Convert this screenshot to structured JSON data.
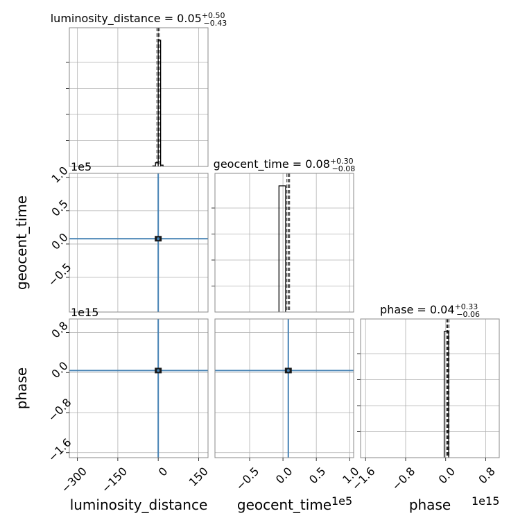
{
  "chart_data": {
    "type": "corner",
    "parameters": [
      "luminosity_distance",
      "geocent_time",
      "phase"
    ],
    "titles": [
      {
        "name": "luminosity_distance",
        "median": "0.05",
        "plus": "+0.50",
        "minus": "−0.43"
      },
      {
        "name": "geocent_time",
        "median": "0.08",
        "plus": "+0.30",
        "minus": "−0.08"
      },
      {
        "name": "phase",
        "median": "0.04",
        "plus": "+0.33",
        "minus": "−0.06"
      }
    ],
    "ranges": [
      [
        -330,
        185
      ],
      [
        -102000,
        106000
      ],
      [
        -1700000000000000.0,
        1070000000000000.0
      ]
    ],
    "ticks": {
      "luminosity_distance": [
        {
          "v": -300,
          "label": "−300"
        },
        {
          "v": -150,
          "label": "−150"
        },
        {
          "v": 0,
          "label": "0"
        },
        {
          "v": 150,
          "label": "150"
        }
      ],
      "geocent_time": [
        {
          "v": -50000,
          "label": "−0.5"
        },
        {
          "v": 0,
          "label": "0.0"
        },
        {
          "v": 50000,
          "label": "0.5"
        },
        {
          "v": 100000,
          "label": "1.0"
        }
      ],
      "phase": [
        {
          "v": -1600000000000000.0,
          "label": "−1.6"
        },
        {
          "v": -800000000000000.0,
          "label": "−0.8"
        },
        {
          "v": 0,
          "label": "0.0"
        },
        {
          "v": 800000000000000.0,
          "label": "0.8"
        }
      ]
    },
    "offset_labels": {
      "geocent_time": "1e5",
      "phase": "1e15"
    },
    "medians": [
      0.05,
      8000,
      40000000000000.0
    ],
    "histograms": [
      {
        "bins": [
          [
            -20,
            -10,
            0.004
          ],
          [
            -10,
            0,
            0.03
          ],
          [
            0,
            9,
            1.0
          ],
          [
            9,
            18,
            0.01
          ]
        ]
      },
      {
        "bins": [
          [
            -6000,
            4000,
            1.0
          ]
        ]
      },
      {
        "bins": [
          [
            -30000000000000.0,
            60000000000000.0,
            1.0
          ]
        ]
      }
    ],
    "grid": true,
    "hist_color": "#000000",
    "contour_color": "#4682b4"
  }
}
